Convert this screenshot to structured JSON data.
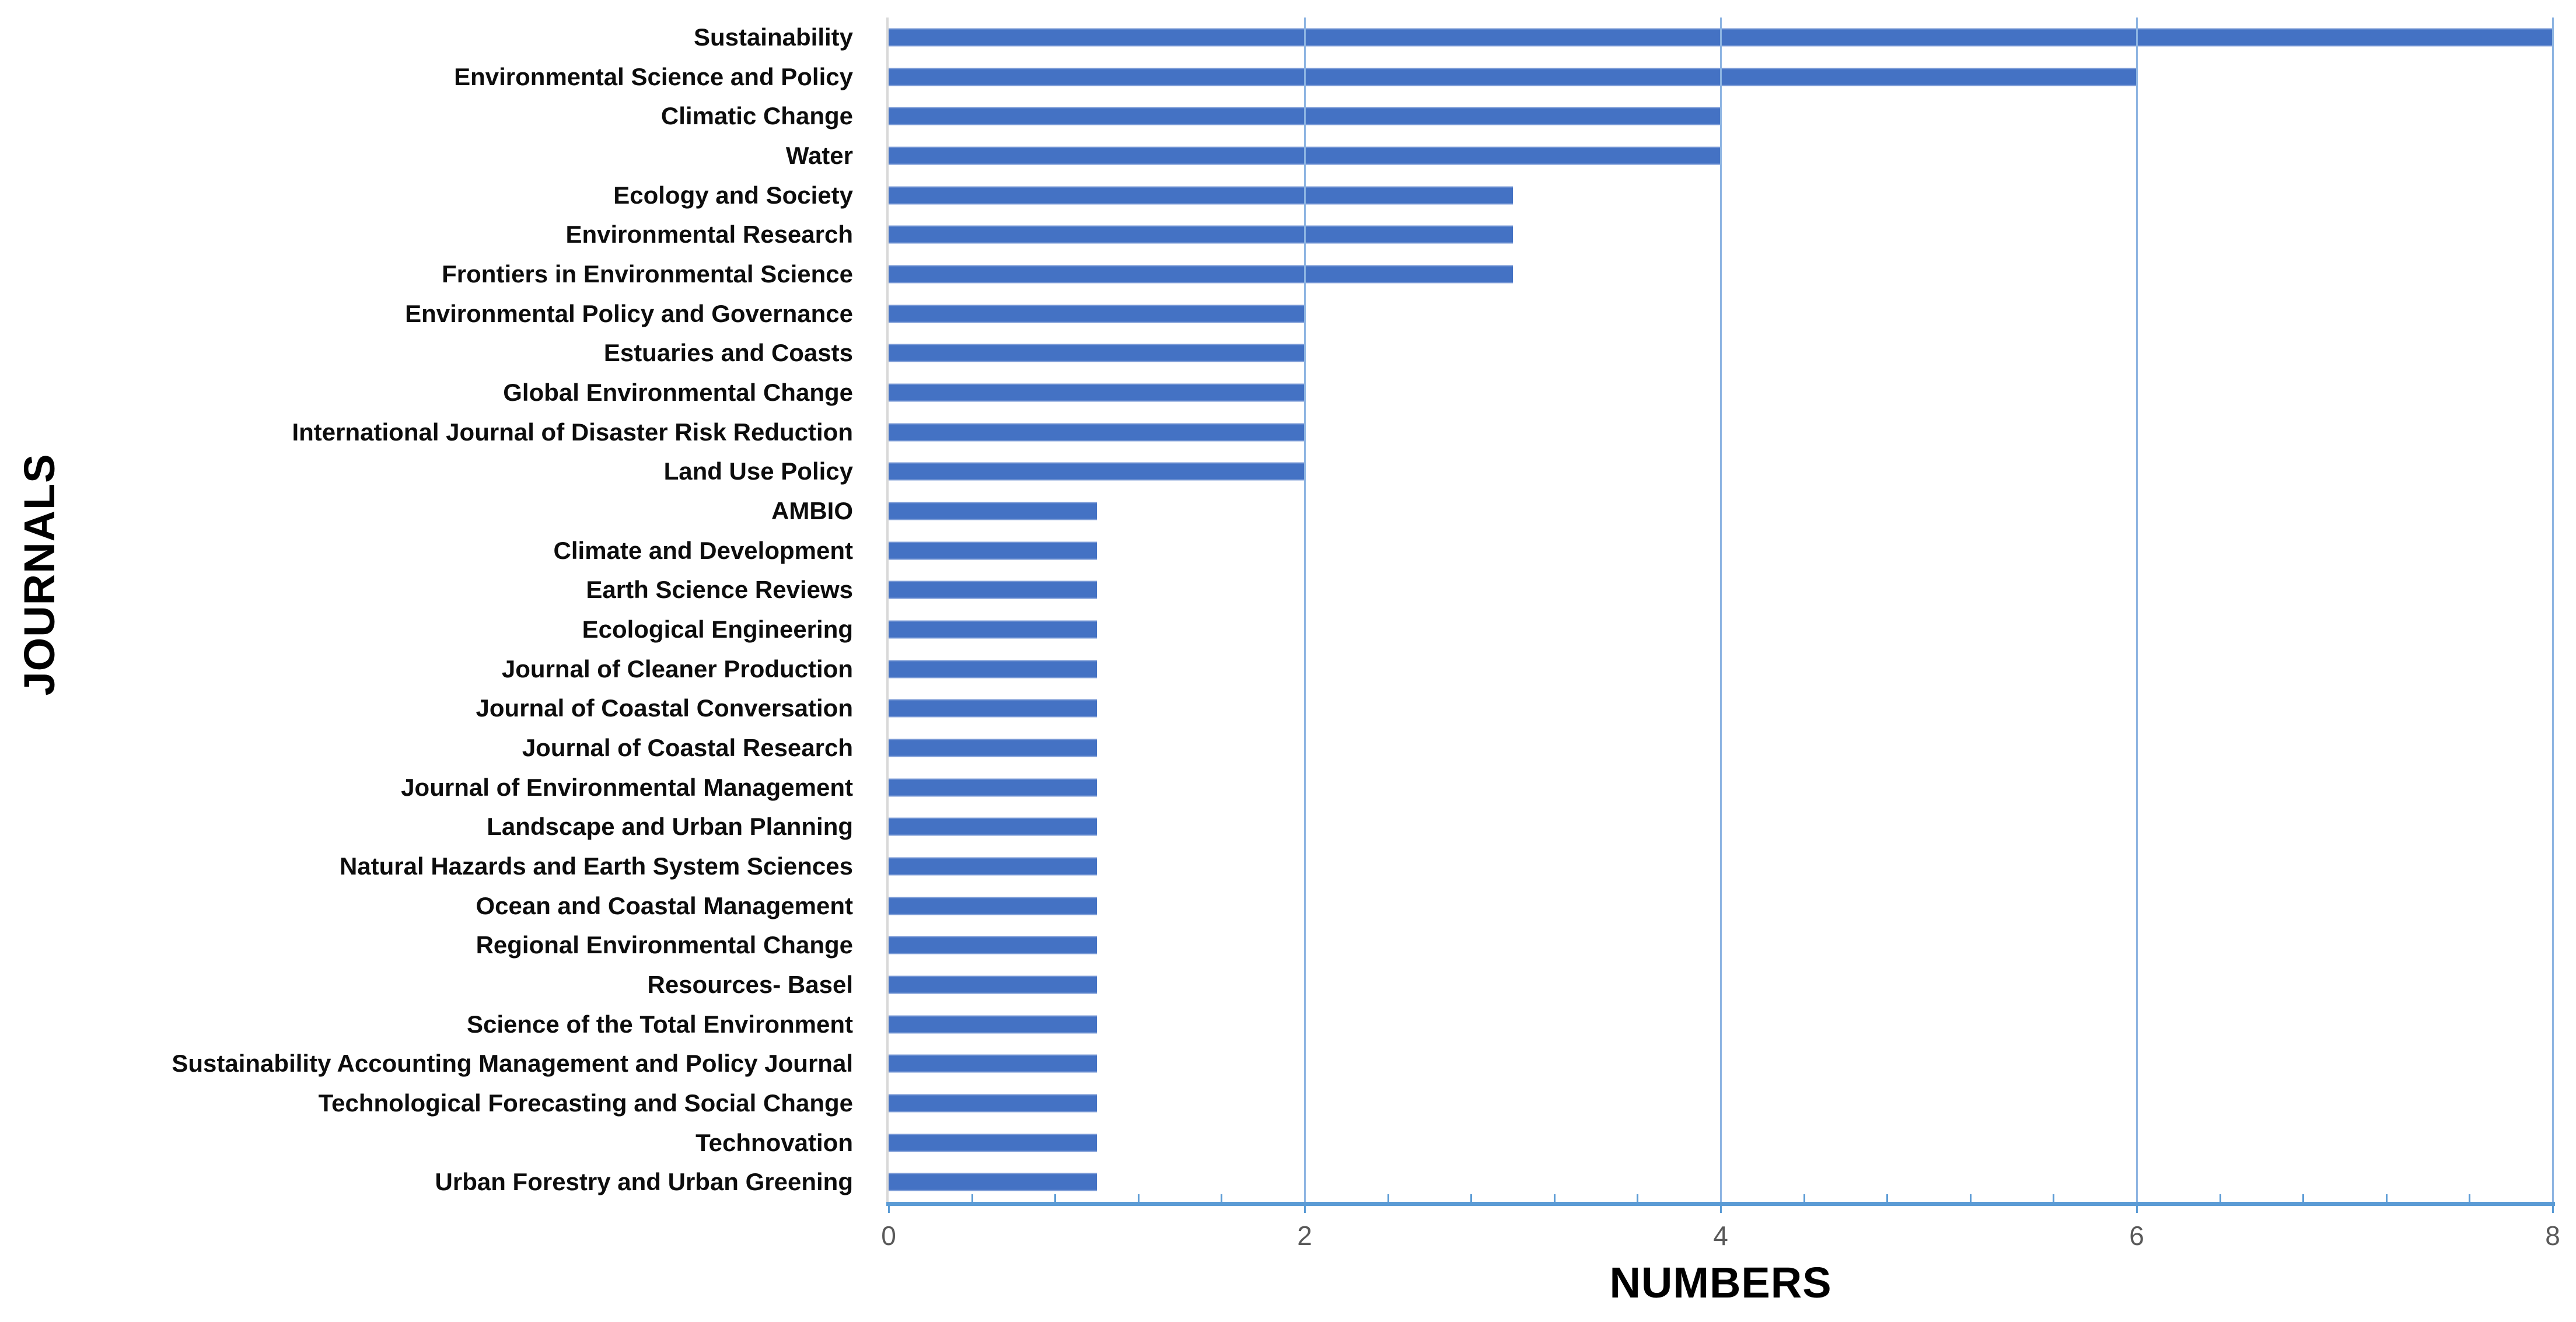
{
  "chart_data": {
    "type": "bar",
    "orientation": "horizontal",
    "title": "",
    "xlabel": "NUMBERS",
    "ylabel": "JOURNALS",
    "xlim": [
      0,
      8
    ],
    "x_ticks": [
      0,
      2,
      4,
      6,
      8
    ],
    "minor_tick_unit": 0.4,
    "grid": "vertical gridlines at major ticks",
    "legend": "none",
    "categories": [
      "Sustainability",
      "Environmental Science and Policy",
      "Climatic Change",
      "Water",
      "Ecology and Society",
      "Environmental Research",
      "Frontiers in Environmental Science",
      "Environmental Policy and Governance",
      "Estuaries and Coasts",
      "Global Environmental Change",
      "International Journal of Disaster Risk Reduction",
      "Land Use Policy",
      "AMBIO",
      "Climate and Development",
      "Earth Science Reviews",
      "Ecological Engineering",
      "Journal of Cleaner Production",
      "Journal of Coastal Conversation",
      "Journal of Coastal Research",
      "Journal of Environmental Management",
      "Landscape and Urban Planning",
      "Natural Hazards and Earth System Sciences",
      "Ocean and Coastal Management",
      "Regional Environmental Change",
      "Resources- Basel",
      "Science of the Total Environment",
      "Sustainability Accounting Management and Policy Journal",
      "Technological Forecasting and Social Change",
      "Technovation",
      "Urban Forestry and Urban Greening"
    ],
    "values": [
      8,
      6,
      4,
      4,
      3,
      3,
      3,
      2,
      2,
      2,
      2,
      2,
      1,
      1,
      1,
      1,
      1,
      1,
      1,
      1,
      1,
      1,
      1,
      1,
      1,
      1,
      1,
      1,
      1,
      1
    ]
  },
  "colors": {
    "bar_fill": "#4472C4",
    "value_axis_line": "#5B9BD5",
    "gridline": "#8DB4E2",
    "category_axis_line": "#D9D9D9",
    "tick_label_text": "#595959",
    "category_label_text": "#0D0D0D",
    "axis_title_text": "#000000",
    "background": "#FFFFFF"
  }
}
